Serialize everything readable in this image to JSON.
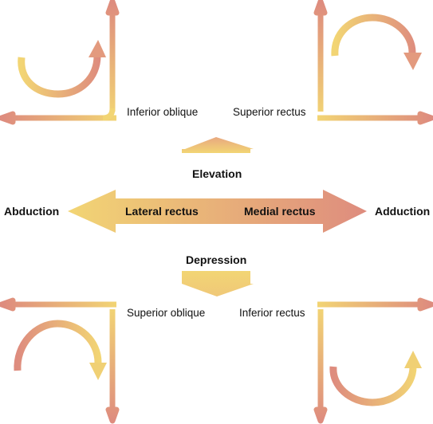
{
  "labels": {
    "inferior_oblique": "Inferior oblique",
    "superior_rectus": "Superior rectus",
    "elevation": "Elevation",
    "abduction": "Abduction",
    "lateral_rectus": "Lateral rectus",
    "medial_rectus": "Medial rectus",
    "adduction": "Adduction",
    "depression": "Depression",
    "superior_oblique": "Superior oblique",
    "inferior_rectus": "Inferior rectus"
  },
  "colors": {
    "yellow": "#f2d574",
    "salmon": "#de8c7e",
    "text": "#111111"
  }
}
